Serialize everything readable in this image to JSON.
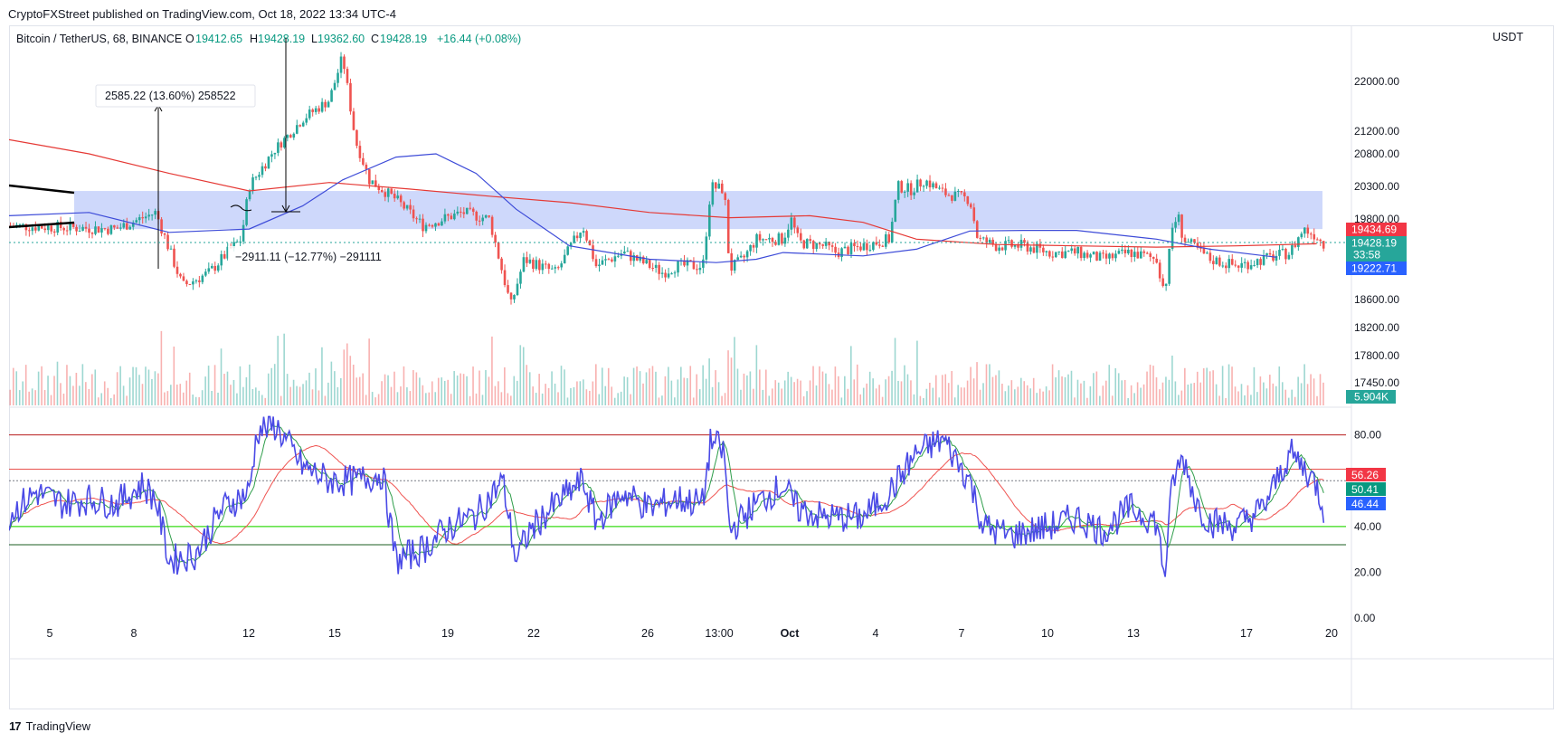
{
  "header": {
    "published": "CryptoFXStreet published on TradingView.com, Oct 18, 2022 13:34 UTC-4"
  },
  "legend": {
    "symbol": "Bitcoin / TetherUS, 68, BINANCE",
    "o_label": "O",
    "o_value": "19412.65",
    "h_label": "H",
    "h_value": "19428.19",
    "l_label": "L",
    "l_value": "19362.60",
    "c_label": "C",
    "c_value": "19428.19",
    "change": "+16.44 (+0.08%)"
  },
  "footer": {
    "brand": "TradingView",
    "logo": "17"
  },
  "colors": {
    "up": "#26a69a",
    "down": "#ef5350",
    "zone": "#c9d4fb",
    "ma_red": "#e53935",
    "ma_blue": "#3d4bd8",
    "rsi": "#4a4ae6",
    "rsi_ma_green": "#2e9d4a",
    "rsi_ma_red": "#ef5350"
  },
  "chart_data": [
    {
      "type": "line",
      "panel": "price",
      "currency": "USDT",
      "y_ticks": [
        "22000.00",
        "21200.00",
        "20800.00",
        "20300.00",
        "19800.00",
        "18600.00",
        "18200.00",
        "17800.00",
        "17450.00"
      ],
      "x_ticks": [
        "5",
        "8",
        "12",
        "15",
        "19",
        "22",
        "26",
        "13:00",
        "Oct",
        "4",
        "7",
        "10",
        "13",
        "17",
        "20"
      ],
      "price_labels": [
        {
          "value": "19434.69",
          "color": "#f23645"
        },
        {
          "value": "19428.19",
          "sub": "33:58",
          "color": "#26a69a"
        },
        {
          "value": "19222.71",
          "color": "#2962ff"
        }
      ],
      "volume_label": "5.904K",
      "annotations": [
        "2585.22 (13.60%) 258522",
        "−2911.11 (−12.77%) −291111"
      ],
      "zone": [
        19650,
        20230
      ],
      "price_path": [
        [
          0,
          19700
        ],
        [
          4,
          19650
        ],
        [
          5.5,
          19900
        ],
        [
          6.5,
          18800
        ],
        [
          7.5,
          19000
        ],
        [
          8.3,
          19350
        ],
        [
          8.7,
          19500
        ],
        [
          9,
          20300
        ],
        [
          10,
          20900
        ],
        [
          11,
          21400
        ],
        [
          12,
          21700
        ],
        [
          12.5,
          22400
        ],
        [
          13,
          21000
        ],
        [
          13.5,
          20400
        ],
        [
          14.5,
          20100
        ],
        [
          15.5,
          19700
        ],
        [
          17,
          19900
        ],
        [
          18,
          19800
        ],
        [
          18.8,
          18500
        ],
        [
          19.3,
          19200
        ],
        [
          20.5,
          19000
        ],
        [
          21.5,
          19700
        ],
        [
          22,
          19100
        ],
        [
          23,
          19300
        ],
        [
          24.5,
          19000
        ],
        [
          25,
          19100
        ],
        [
          26,
          19100
        ],
        [
          26.3,
          20300
        ],
        [
          26.8,
          20250
        ],
        [
          27,
          19050
        ],
        [
          27.5,
          19200
        ],
        [
          28,
          19500
        ],
        [
          29,
          19500
        ],
        [
          29.3,
          19800
        ],
        [
          29.6,
          19450
        ],
        [
          30.5,
          19400
        ],
        [
          31,
          19300
        ],
        [
          32,
          19400
        ],
        [
          33,
          19500
        ],
        [
          33.3,
          20300
        ],
        [
          33.8,
          20250
        ],
        [
          34.3,
          20400
        ],
        [
          35,
          20200
        ],
        [
          36,
          20100
        ],
        [
          36.3,
          19500
        ],
        [
          37,
          19400
        ],
        [
          38,
          19400
        ],
        [
          39,
          19300
        ],
        [
          40,
          19300
        ],
        [
          41,
          19200
        ],
        [
          42,
          19300
        ],
        [
          43,
          19200
        ],
        [
          43.3,
          18700
        ],
        [
          43.6,
          19700
        ],
        [
          43.8,
          19850
        ],
        [
          44,
          19500
        ],
        [
          45,
          19200
        ],
        [
          46,
          19100
        ],
        [
          47,
          19200
        ],
        [
          48,
          19300
        ],
        [
          48.5,
          19650
        ],
        [
          49,
          19550
        ],
        [
          49.3,
          19400
        ]
      ],
      "ma_red": [
        [
          0,
          21050
        ],
        [
          3,
          20800
        ],
        [
          6,
          20500
        ],
        [
          9,
          20230
        ],
        [
          12,
          20360
        ],
        [
          15,
          20260
        ],
        [
          18,
          20150
        ],
        [
          21,
          20050
        ],
        [
          24,
          19900
        ],
        [
          27,
          19820
        ],
        [
          30,
          19850
        ],
        [
          32,
          19750
        ],
        [
          34,
          19500
        ],
        [
          37,
          19420
        ],
        [
          40,
          19400
        ],
        [
          43,
          19380
        ],
        [
          46,
          19400
        ],
        [
          49,
          19430
        ]
      ],
      "ma_blue": [
        [
          0,
          19850
        ],
        [
          3,
          19900
        ],
        [
          6,
          19600
        ],
        [
          9,
          19650
        ],
        [
          11,
          20000
        ],
        [
          12.5,
          20400
        ],
        [
          14.5,
          20750
        ],
        [
          16,
          20800
        ],
        [
          17.5,
          20500
        ],
        [
          19,
          19950
        ],
        [
          21,
          19400
        ],
        [
          24,
          19200
        ],
        [
          26.5,
          19150
        ],
        [
          28,
          19200
        ],
        [
          29,
          19300
        ],
        [
          32,
          19250
        ],
        [
          34,
          19350
        ],
        [
          36,
          19620
        ],
        [
          38,
          19630
        ],
        [
          40,
          19630
        ],
        [
          43,
          19500
        ],
        [
          45,
          19350
        ],
        [
          47.5,
          19230
        ]
      ]
    },
    {
      "type": "line",
      "panel": "rsi",
      "y_ticks": [
        "80.00",
        "40.00",
        "20.00",
        "0.00"
      ],
      "levels": [
        80,
        65,
        60,
        40,
        32
      ],
      "value_labels": [
        {
          "value": "56.26",
          "color": "#f23645"
        },
        {
          "value": "50.41",
          "color": "#089981"
        },
        {
          "value": "46.44",
          "color": "#2962ff"
        }
      ],
      "rsi_path": [
        [
          0,
          45
        ],
        [
          1,
          55
        ],
        [
          2,
          50
        ],
        [
          3,
          52
        ],
        [
          4,
          50
        ],
        [
          5,
          58
        ],
        [
          5.5,
          52
        ],
        [
          6,
          25
        ],
        [
          7,
          28
        ],
        [
          8,
          48
        ],
        [
          9,
          55
        ],
        [
          9.3,
          82
        ],
        [
          10,
          84
        ],
        [
          11,
          66
        ],
        [
          12,
          60
        ],
        [
          13,
          60
        ],
        [
          14,
          63
        ],
        [
          14.5,
          25
        ],
        [
          15.5,
          30
        ],
        [
          16.5,
          40
        ],
        [
          17.5,
          45
        ],
        [
          18.5,
          60
        ],
        [
          19,
          25
        ],
        [
          19.5,
          38
        ],
        [
          20.5,
          50
        ],
        [
          21.5,
          60
        ],
        [
          22,
          42
        ],
        [
          23,
          55
        ],
        [
          24,
          48
        ],
        [
          25,
          52
        ],
        [
          26,
          50
        ],
        [
          26.3,
          78
        ],
        [
          26.8,
          72
        ],
        [
          27,
          38
        ],
        [
          28,
          50
        ],
        [
          29,
          58
        ],
        [
          29.5,
          48
        ],
        [
          30.5,
          44
        ],
        [
          32,
          44
        ],
        [
          33,
          55
        ],
        [
          34,
          72
        ],
        [
          35,
          78
        ],
        [
          36,
          60
        ],
        [
          36.5,
          40
        ],
        [
          37.5,
          36
        ],
        [
          39,
          40
        ],
        [
          40,
          44
        ],
        [
          41,
          38
        ],
        [
          42,
          48
        ],
        [
          43,
          42
        ],
        [
          43.3,
          18
        ],
        [
          43.6,
          60
        ],
        [
          44,
          70
        ],
        [
          44.5,
          50
        ],
        [
          45,
          42
        ],
        [
          46,
          40
        ],
        [
          47,
          48
        ],
        [
          48,
          72
        ],
        [
          48.5,
          66
        ],
        [
          49,
          58
        ],
        [
          49.3,
          46
        ]
      ]
    }
  ]
}
